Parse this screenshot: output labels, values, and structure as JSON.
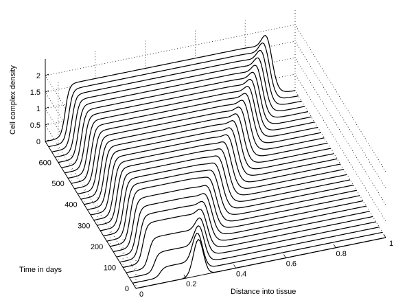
{
  "chart_data": {
    "type": "waterfall",
    "xlabel": "Distance into tissue",
    "ylabel": "Time in days",
    "zlabel": "Cell complex density",
    "x_ticks": [
      "0",
      "0.2",
      "0.4",
      "0.6",
      "0.8",
      "1"
    ],
    "y_ticks": [
      "0",
      "100",
      "200",
      "300",
      "400",
      "500",
      "600"
    ],
    "z_ticks": [
      "0",
      "0.5",
      "1",
      "1.5",
      "2"
    ],
    "xlim": [
      0,
      1
    ],
    "ylim": [
      0,
      700
    ],
    "zlim": [
      0,
      2
    ],
    "grid": true,
    "series_times": [
      0,
      25,
      50,
      75,
      100,
      125,
      150,
      175,
      200,
      225,
      250,
      275,
      300,
      325,
      350,
      375,
      400,
      425,
      450,
      475,
      500,
      525,
      550,
      575,
      600,
      625,
      650,
      675,
      700
    ],
    "profile_summary": [
      {
        "time": 0,
        "front_position": 0.25,
        "peak_density": 1.1,
        "plateau_density": 0.0
      },
      {
        "time": 100,
        "front_position": 0.33,
        "peak_density": 1.6,
        "plateau_density": 1.2
      },
      {
        "time": 200,
        "front_position": 0.42,
        "peak_density": 1.8,
        "plateau_density": 1.55
      },
      {
        "time": 300,
        "front_position": 0.52,
        "peak_density": 1.9,
        "plateau_density": 1.6
      },
      {
        "time": 400,
        "front_position": 0.62,
        "peak_density": 2.0,
        "plateau_density": 1.6
      },
      {
        "time": 500,
        "front_position": 0.72,
        "peak_density": 2.05,
        "plateau_density": 1.6
      },
      {
        "time": 600,
        "front_position": 0.81,
        "peak_density": 2.15,
        "plateau_density": 1.6
      },
      {
        "time": 700,
        "front_position": 0.9,
        "peak_density": 2.3,
        "plateau_density": 1.6
      }
    ]
  }
}
